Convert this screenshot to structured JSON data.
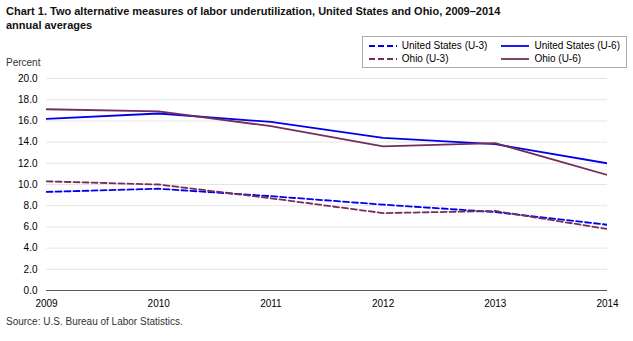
{
  "chart_data": {
    "type": "line",
    "title": "Chart 1. Two alternative measures of labor underutilization, United States and Ohio, 2009–2014",
    "subtitle": "annual averages",
    "y_label": "Percent",
    "source": "Source: U.S. Bureau of Labor Statistics.",
    "x": [
      2009,
      2010,
      2011,
      2012,
      2013,
      2014
    ],
    "series": [
      {
        "name": "United States (U-3)",
        "color": "#0000EE",
        "line_style": "dashed",
        "values": [
          9.3,
          9.6,
          8.9,
          8.1,
          7.4,
          6.2
        ]
      },
      {
        "name": "Ohio (U-3)",
        "color": "#722F5A",
        "line_style": "dashed",
        "values": [
          10.3,
          10.0,
          8.7,
          7.3,
          7.5,
          5.8
        ]
      },
      {
        "name": "United States (U-6)",
        "color": "#0000EE",
        "line_style": "solid",
        "values": [
          16.2,
          16.7,
          15.9,
          14.4,
          13.8,
          12.0
        ]
      },
      {
        "name": "Ohio (U-6)",
        "color": "#722F5A",
        "line_style": "solid",
        "values": [
          17.1,
          16.9,
          15.5,
          13.6,
          13.9,
          10.9
        ]
      }
    ],
    "xlim": [
      2009,
      2014
    ],
    "xticks": [
      2009,
      2010,
      2011,
      2012,
      2013,
      2014
    ],
    "ylim": [
      0,
      20.0
    ],
    "yticks": [
      {
        "value": 0,
        "label": "0.0"
      },
      {
        "value": 2,
        "label": "2.0"
      },
      {
        "value": 4,
        "label": "4.0"
      },
      {
        "value": 6,
        "label": "6.0"
      },
      {
        "value": 8,
        "label": "8.0"
      },
      {
        "value": 10,
        "label": "10.0"
      },
      {
        "value": 12,
        "label": "12.0"
      },
      {
        "value": 14,
        "label": "14.0"
      },
      {
        "value": 16,
        "label": "16.0"
      },
      {
        "value": 18,
        "label": "18.0"
      },
      {
        "value": 20,
        "label": "20.0"
      }
    ],
    "grid": "y",
    "legend": "upper right"
  }
}
